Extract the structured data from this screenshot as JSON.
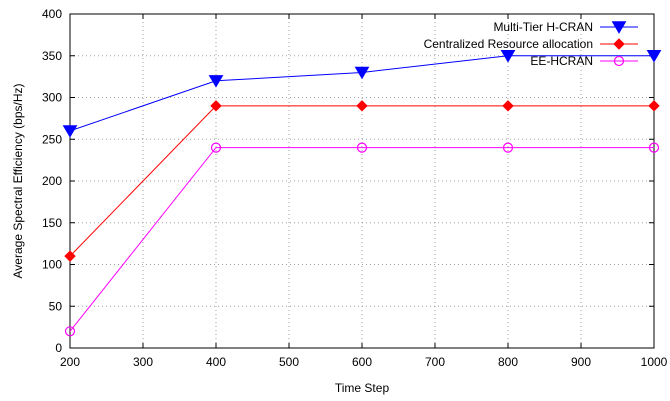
{
  "chart_data": {
    "type": "line",
    "xlabel": "Time Step",
    "ylabel": "Average Spectral Efficiency (bps/Hz)",
    "xlim": [
      200,
      1000
    ],
    "ylim": [
      0,
      400
    ],
    "xticks": [
      200,
      300,
      400,
      500,
      600,
      700,
      800,
      900,
      1000
    ],
    "yticks": [
      0,
      50,
      100,
      150,
      200,
      250,
      300,
      350,
      400
    ],
    "grid": true,
    "legend_position": "top-right",
    "series": [
      {
        "name": "Multi-Tier H-CRAN",
        "color": "#0000ff",
        "marker": "triangle-down-filled",
        "x": [
          200,
          400,
          600,
          800,
          1000
        ],
        "y": [
          260,
          320,
          330,
          350,
          350
        ]
      },
      {
        "name": "Centralized Resource allocation",
        "color": "#ff0000",
        "marker": "diamond-filled",
        "x": [
          200,
          400,
          600,
          800,
          1000
        ],
        "y": [
          110,
          290,
          290,
          290,
          290
        ]
      },
      {
        "name": "EE-HCRAN",
        "color": "#ff00ff",
        "marker": "circle-open",
        "x": [
          200,
          400,
          600,
          800,
          1000
        ],
        "y": [
          20,
          240,
          240,
          240,
          240
        ]
      }
    ]
  }
}
